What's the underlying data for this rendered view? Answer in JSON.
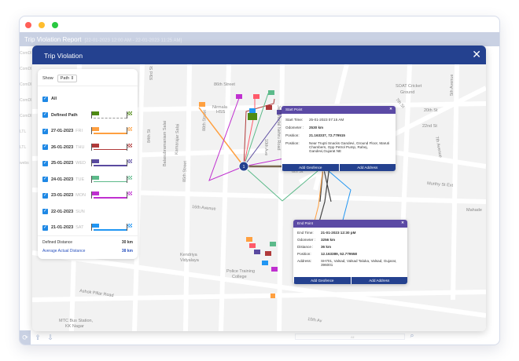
{
  "window": {
    "dots": [
      "#ff5f57",
      "#ffbd2e",
      "#28c840"
    ]
  },
  "report": {
    "title": "Trip Violation Report",
    "range": "[22-01-2023 12:00 AM - 22-01-2023 11:25 AM]",
    "side_labels": [
      "ComDl",
      "ComDl",
      "ComDl",
      "ComDl",
      "ComDl",
      "LTL",
      "LTL",
      "webs"
    ]
  },
  "modal": {
    "title": "Trip Violation",
    "close": "✕"
  },
  "legend": {
    "show_label": "Show",
    "show_value": "Path ⇕",
    "items": [
      {
        "label": "All",
        "checked": true
      },
      {
        "label": "Defined Path",
        "day": "",
        "color": "#4e8a12",
        "checked": true,
        "dashed": true
      },
      {
        "label": "27-01-2023",
        "day": "FRI",
        "color": "#ffa040",
        "checked": true
      },
      {
        "label": "26-01-2023",
        "day": "THU",
        "color": "#b03a3a",
        "checked": true
      },
      {
        "label": "25-01-2023",
        "day": "WED",
        "color": "#5a4aa0",
        "checked": true
      },
      {
        "label": "24-01-2023",
        "day": "TUE",
        "color": "#5cba8a",
        "checked": true
      },
      {
        "label": "23-01-2023",
        "day": "MON",
        "color": "#c030d0",
        "checked": true
      },
      {
        "label": "22-01-2023",
        "day": "SUN",
        "color": "",
        "checked": true
      },
      {
        "label": "21-01-2023",
        "day": "SAT",
        "color": "#2196f3",
        "checked": true
      }
    ],
    "defined_distance_label": "Defined Distance",
    "defined_distance": "30 km",
    "avg_distance_label": "Average Actual Distance",
    "avg_distance": "38 km"
  },
  "map": {
    "labels": [
      "86th Street",
      "SOAT Cricket",
      "Ground",
      "7th St",
      "20th St",
      "22nd St",
      "5th Avenue",
      "7th Avenue",
      "Murthy St Ext",
      "Mahade",
      "16th Avenue",
      "93rd St",
      "84th St",
      "Balasubramaniam Salai",
      "Kamarajar Salai",
      "85th Street",
      "88th Street",
      "Nirmala",
      "HSS",
      "Jawaharlal Nehru Road",
      "Kendriya",
      "Vidyalaya",
      "Police Training",
      "College",
      "Ashok Pillar Road",
      "MTC Bus Station,",
      "KK Nagar",
      "10th Av",
      "6th St",
      "10th Ave"
    ],
    "markers": [
      "1",
      "2"
    ]
  },
  "start_popup": {
    "title": "Start Point",
    "close": "✕",
    "rows": [
      {
        "k": "Start Time:",
        "v": "25-01-2023 07:15 AM"
      },
      {
        "k": "Odometer :",
        "v": "2530 km"
      },
      {
        "k": "Position:",
        "v": "21.163337, 72.779515"
      },
      {
        "k": "Position:",
        "v": "Near Trupti Snacks Gandevi, Ground Floor, Maruti Chambers, Opp Petrol Pump, Rahej, Gandevi,Gujarat NE"
      }
    ],
    "btn_geofence": "Add Geofence",
    "btn_address": "Add Address"
  },
  "end_popup": {
    "title": "End Point",
    "close": "✕",
    "rows": [
      {
        "k": "End Time:",
        "v": "21-01-2023 12:30 pM"
      },
      {
        "k": "Odometer :",
        "v": "3256 km"
      },
      {
        "k": "Distance :",
        "v": "36 km"
      },
      {
        "k": "Position:",
        "v": "12.163389, 52.779558"
      },
      {
        "k": "Address:",
        "v": "SH701, Valsad, Valsad Taluka, Valsad, Gujarat, 396001"
      }
    ],
    "btn_geofence": "Add Geofence",
    "btn_address": "Add Address"
  },
  "bottom": {
    "search_value": "All"
  }
}
